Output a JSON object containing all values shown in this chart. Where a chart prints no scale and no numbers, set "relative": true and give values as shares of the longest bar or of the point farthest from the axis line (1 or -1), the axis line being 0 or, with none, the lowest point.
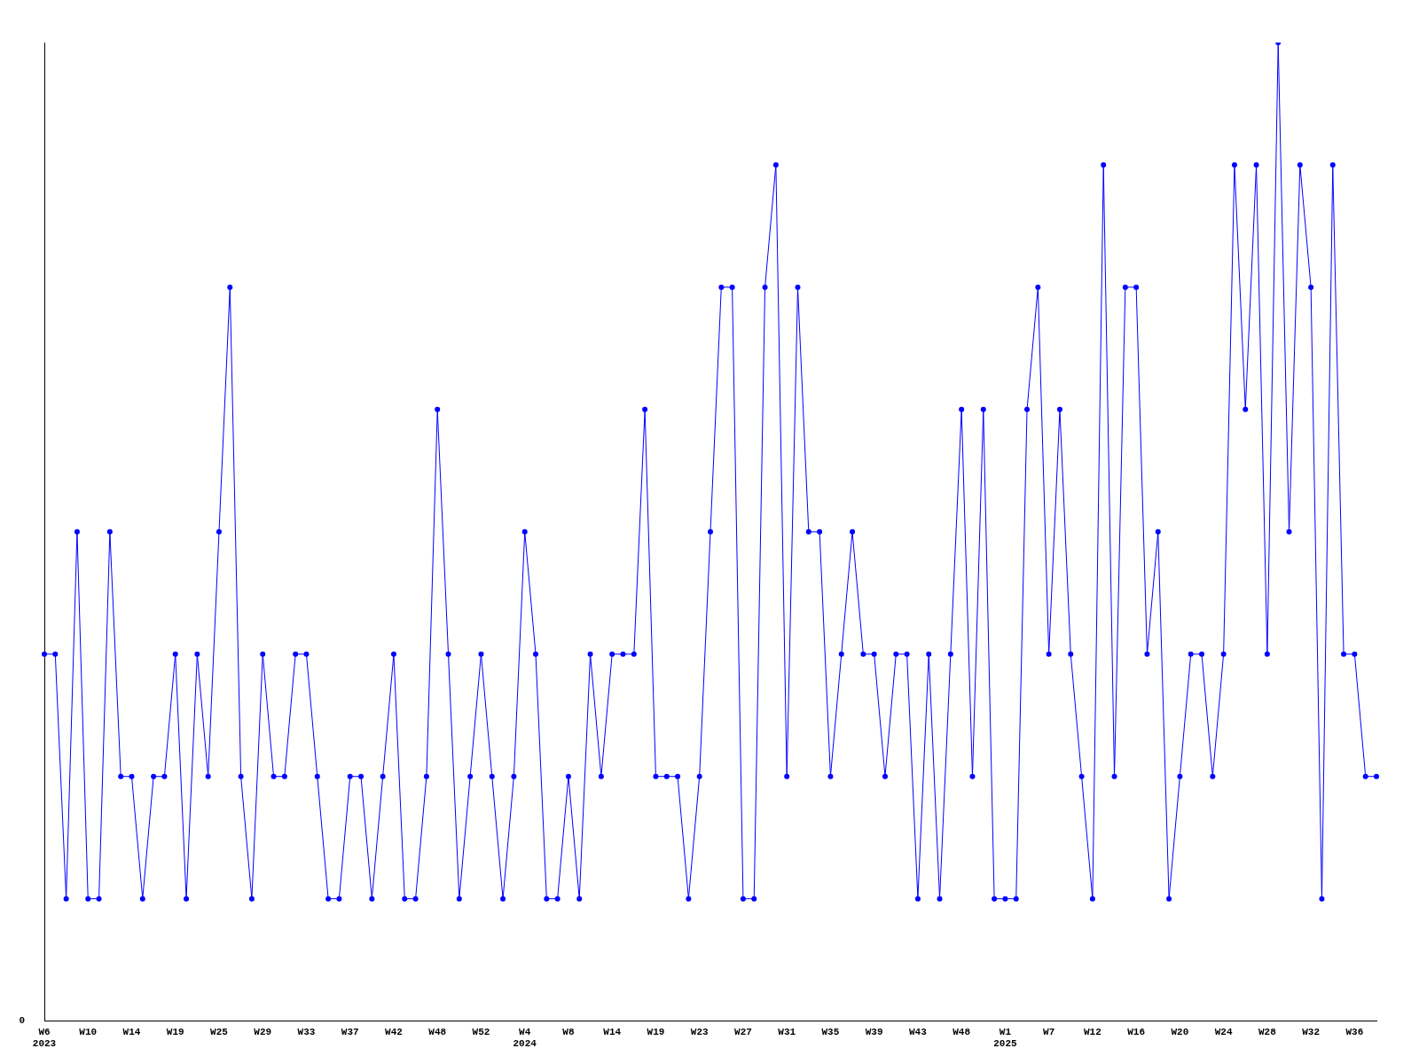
{
  "chart_data": {
    "type": "line",
    "relative": true,
    "grid": false,
    "legend": false,
    "marker": "circle",
    "line_style": "solid",
    "annotations": [
      "0"
    ],
    "categories": [
      "W6\n2023",
      null,
      null,
      null,
      "W10",
      null,
      null,
      null,
      "W14",
      null,
      null,
      null,
      "W19",
      null,
      null,
      null,
      "W25",
      null,
      null,
      null,
      "W29",
      null,
      null,
      null,
      "W33",
      null,
      null,
      null,
      "W37",
      null,
      null,
      null,
      "W42",
      null,
      null,
      null,
      "W48",
      null,
      null,
      null,
      "W52",
      null,
      null,
      null,
      "W4\n2024",
      null,
      null,
      null,
      "W8",
      null,
      null,
      null,
      "W14",
      null,
      null,
      null,
      "W19",
      null,
      null,
      null,
      "W23",
      null,
      null,
      null,
      "W27",
      null,
      null,
      null,
      "W31",
      null,
      null,
      null,
      "W35",
      null,
      null,
      null,
      "W39",
      null,
      null,
      null,
      "W43",
      null,
      null,
      null,
      "W48",
      null,
      null,
      null,
      "W1\n2025",
      null,
      null,
      null,
      "W7",
      null,
      null,
      null,
      "W12",
      null,
      null,
      null,
      "W16",
      null,
      null,
      null,
      "W20",
      null,
      null,
      null,
      "W24",
      null,
      null,
      null,
      "W28",
      null,
      null,
      null,
      "W32",
      null,
      null,
      null,
      "W36",
      null,
      null
    ],
    "series": [
      {
        "color": "#0000ff",
        "values": [
          0.375,
          0.375,
          0.125,
          0.5,
          0.125,
          0.125,
          0.5,
          0.25,
          0.25,
          0.125,
          0.25,
          0.25,
          0.375,
          0.125,
          0.375,
          0.25,
          0.5,
          0.75,
          0.25,
          0.125,
          0.375,
          0.25,
          0.25,
          0.375,
          0.375,
          0.25,
          0.125,
          0.125,
          0.25,
          0.25,
          0.125,
          0.25,
          0.375,
          0.125,
          0.125,
          0.25,
          0.625,
          0.375,
          0.125,
          0.25,
          0.375,
          0.25,
          0.125,
          0.25,
          0.5,
          0.375,
          0.125,
          0.125,
          0.25,
          0.125,
          0.375,
          0.25,
          0.375,
          0.375,
          0.375,
          0.625,
          0.25,
          0.25,
          0.25,
          0.125,
          0.25,
          0.5,
          0.75,
          0.75,
          0.125,
          0.125,
          0.75,
          0.875,
          0.25,
          0.75,
          0.5,
          0.5,
          0.25,
          0.375,
          0.5,
          0.375,
          0.375,
          0.25,
          0.375,
          0.375,
          0.125,
          0.375,
          0.125,
          0.375,
          0.625,
          0.25,
          0.625,
          0.125,
          0.125,
          0.125,
          0.625,
          0.75,
          0.375,
          0.625,
          0.375,
          0.25,
          0.125,
          0.875,
          0.25,
          0.75,
          0.75,
          0.375,
          0.5,
          0.125,
          0.25,
          0.375,
          0.375,
          0.25,
          0.375,
          0.875,
          0.625,
          0.875,
          0.375,
          1,
          0.5,
          0.875,
          0.75,
          0.125,
          0.875,
          0.375,
          0.375,
          0.25,
          0.25
        ]
      }
    ]
  }
}
